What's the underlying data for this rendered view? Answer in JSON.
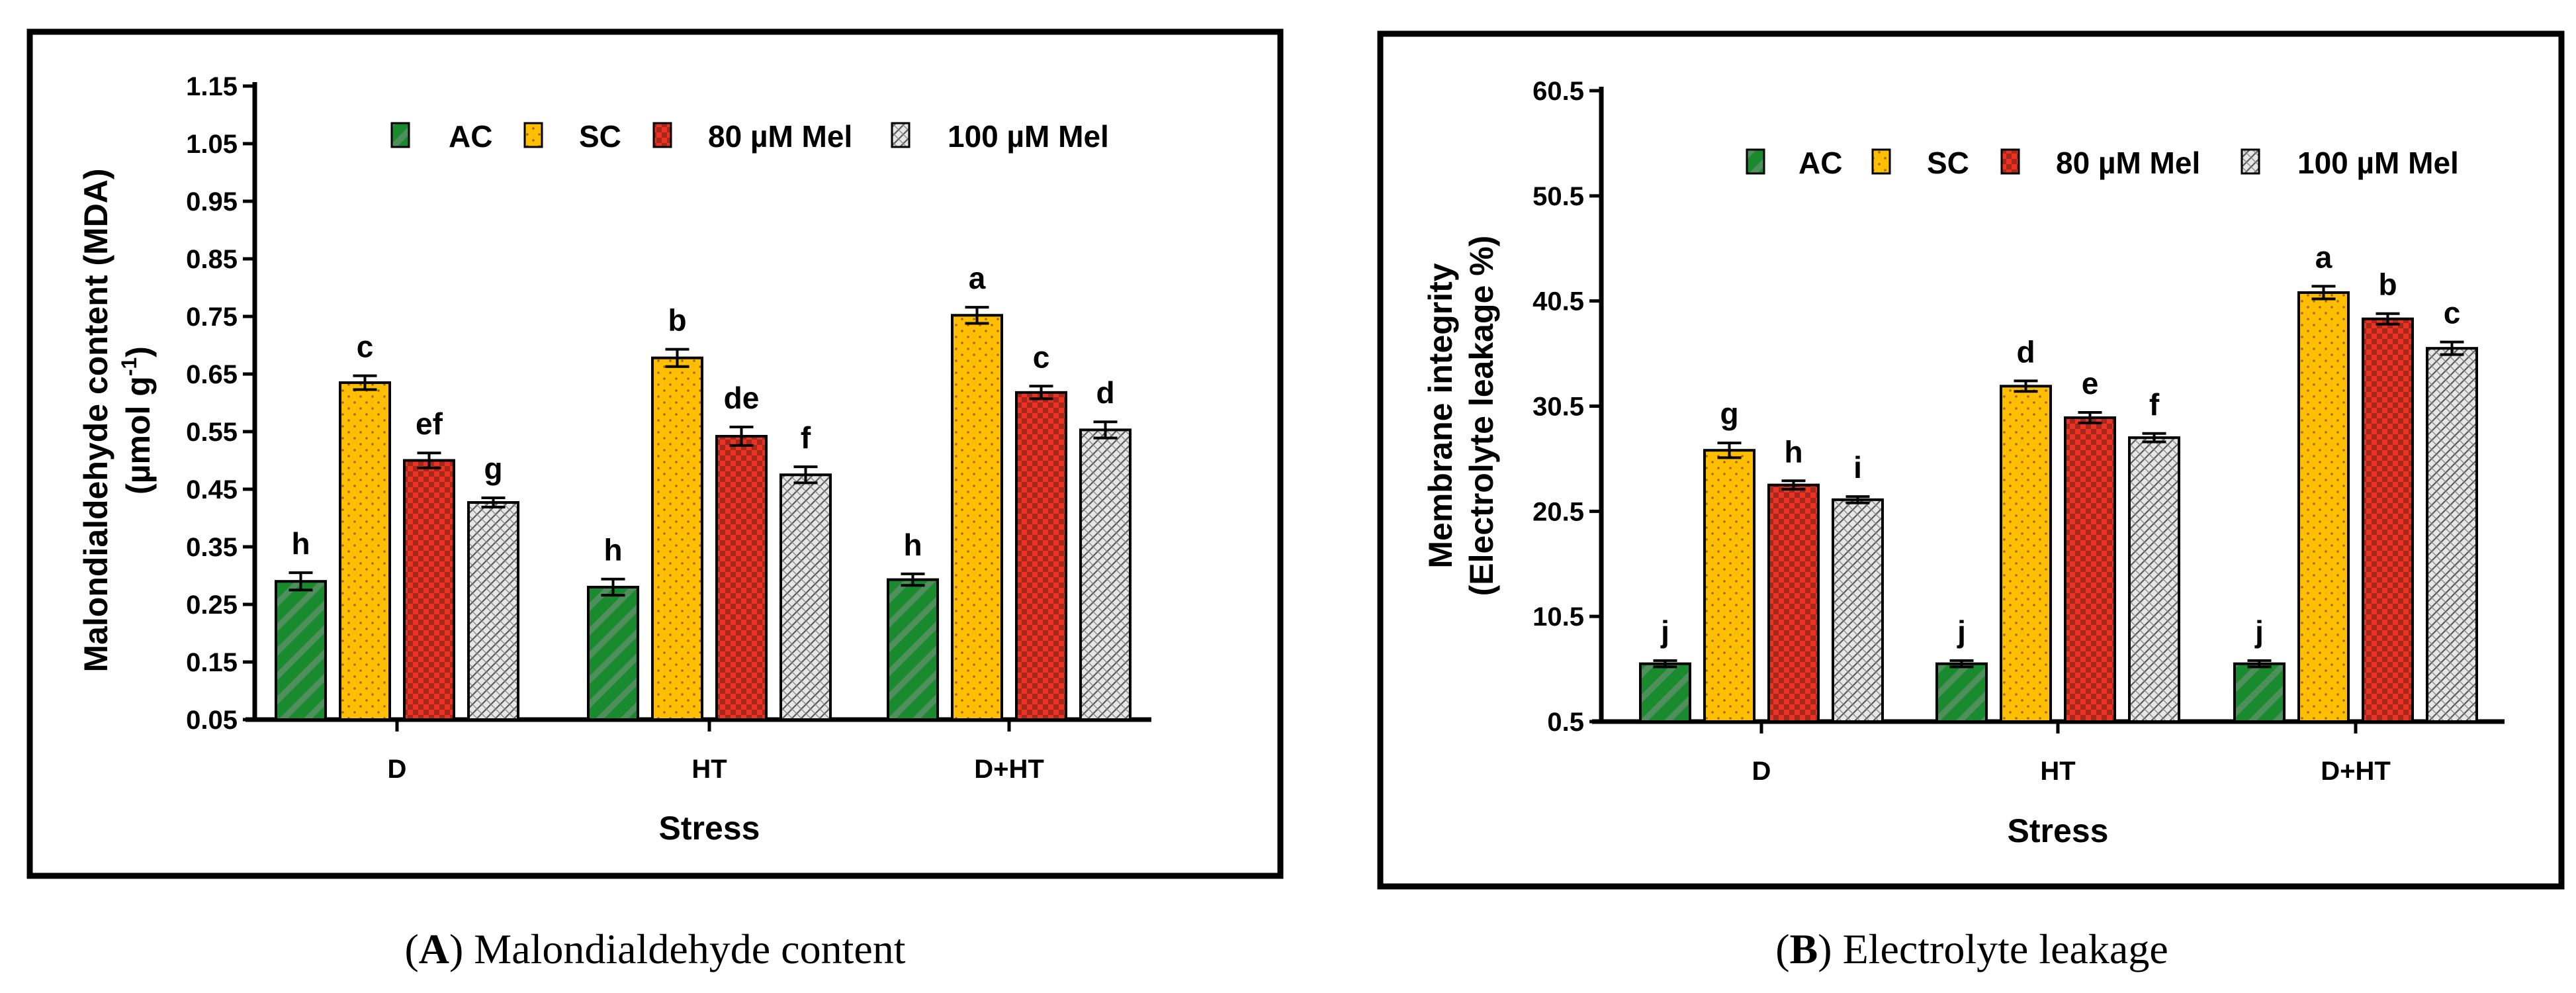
{
  "series_styles": [
    {
      "name": "AC",
      "color": "#1a8a2e",
      "pattern": "stripes"
    },
    {
      "name": "SC",
      "color": "#ffbf00",
      "pattern": "dots"
    },
    {
      "name": "80 µM Mel",
      "color": "#ea3323",
      "pattern": "checker"
    },
    {
      "name": "100 µM Mel",
      "color": "#e3e3e3",
      "pattern": "hatch"
    }
  ],
  "captions": {
    "left_letter": "A",
    "left_text": " Malondialdehyde content",
    "right_letter": "B",
    "right_text": " Electrolyte leakage"
  },
  "chart_data": [
    {
      "type": "bar",
      "panel": "A",
      "title": "",
      "xlabel": "Stress",
      "ylabel_line1": "Malondialdehyde content (MDA)",
      "ylabel_line2_prefix": "(µmol g",
      "ylabel_line2_sup": "-1",
      "ylabel_line2_suffix": ")",
      "ylim": [
        0.05,
        1.15
      ],
      "yticks": [
        "0.05",
        "0.15",
        "0.25",
        "0.35",
        "0.45",
        "0.55",
        "0.65",
        "0.75",
        "0.85",
        "0.95",
        "1.05",
        "1.15"
      ],
      "categories": [
        "D",
        "HT",
        "D+HT"
      ],
      "legend": [
        "AC",
        "SC",
        "80 µM Mel",
        "100 µM Mel"
      ],
      "series": [
        {
          "name": "AC",
          "values": [
            0.29,
            0.28,
            0.293
          ],
          "errors": [
            0.015,
            0.014,
            0.01
          ],
          "letters": [
            "h",
            "h",
            "h"
          ]
        },
        {
          "name": "SC",
          "values": [
            0.635,
            0.678,
            0.752
          ],
          "errors": [
            0.012,
            0.015,
            0.014
          ],
          "letters": [
            "c",
            "b",
            "a"
          ]
        },
        {
          "name": "80 µM Mel",
          "values": [
            0.5,
            0.542,
            0.618
          ],
          "errors": [
            0.013,
            0.016,
            0.011
          ],
          "letters": [
            "ef",
            "de",
            "c"
          ]
        },
        {
          "name": "100 µM Mel",
          "values": [
            0.427,
            0.475,
            0.553
          ],
          "errors": [
            0.008,
            0.014,
            0.014
          ],
          "letters": [
            "g",
            "f",
            "d"
          ]
        }
      ]
    },
    {
      "type": "bar",
      "panel": "B",
      "title": "",
      "xlabel": "Stress",
      "ylabel_line1": "Membrane integrity",
      "ylabel_line2_prefix": "(Electrolyte leakage %)",
      "ylabel_line2_sup": "",
      "ylabel_line2_suffix": "",
      "ylim": [
        0.5,
        60.5
      ],
      "yticks": [
        "0.5",
        "10.5",
        "20.5",
        "30.5",
        "40.5",
        "50.5",
        "60.5"
      ],
      "categories": [
        "D",
        "HT",
        "D+HT"
      ],
      "legend": [
        "AC",
        "SC",
        "80 µM Mel",
        "100 µM Mel"
      ],
      "series": [
        {
          "name": "AC",
          "values": [
            6.0,
            6.0,
            6.0
          ],
          "errors": [
            0.3,
            0.3,
            0.3
          ],
          "letters": [
            "j",
            "j",
            "j"
          ]
        },
        {
          "name": "SC",
          "values": [
            26.3,
            32.4,
            41.3
          ],
          "errors": [
            0.7,
            0.5,
            0.6
          ],
          "letters": [
            "g",
            "d",
            "a"
          ]
        },
        {
          "name": "80 µM Mel",
          "values": [
            23.0,
            29.4,
            38.8
          ],
          "errors": [
            0.4,
            0.5,
            0.5
          ],
          "letters": [
            "h",
            "e",
            "b"
          ]
        },
        {
          "name": "100 µM Mel",
          "values": [
            21.6,
            27.5,
            36.0
          ],
          "errors": [
            0.3,
            0.4,
            0.6
          ],
          "letters": [
            "i",
            "f",
            "c"
          ]
        }
      ]
    }
  ]
}
